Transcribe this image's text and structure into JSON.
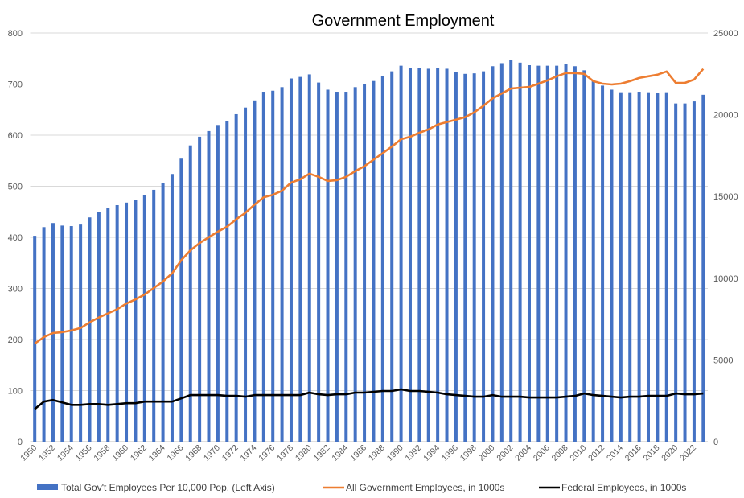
{
  "chart_data": {
    "type": "bar+line",
    "title": "Government Employment",
    "x": [
      1950,
      1951,
      1952,
      1953,
      1954,
      1955,
      1956,
      1957,
      1958,
      1959,
      1960,
      1961,
      1962,
      1963,
      1964,
      1965,
      1966,
      1967,
      1968,
      1969,
      1970,
      1971,
      1972,
      1973,
      1974,
      1975,
      1976,
      1977,
      1978,
      1979,
      1980,
      1981,
      1982,
      1983,
      1984,
      1985,
      1986,
      1987,
      1988,
      1989,
      1990,
      1991,
      1992,
      1993,
      1994,
      1995,
      1996,
      1997,
      1998,
      1999,
      2000,
      2001,
      2002,
      2003,
      2004,
      2005,
      2006,
      2007,
      2008,
      2009,
      2010,
      2011,
      2012,
      2013,
      2014,
      2015,
      2016,
      2017,
      2018,
      2019,
      2020,
      2021,
      2022,
      2023
    ],
    "x_tick_labels": [
      "1950",
      "1952",
      "1954",
      "1956",
      "1958",
      "1960",
      "1962",
      "1964",
      "1966",
      "1968",
      "1970",
      "1972",
      "1974",
      "1976",
      "1978",
      "1980",
      "1982",
      "1984",
      "1986",
      "1988",
      "1990",
      "1992",
      "1994",
      "1996",
      "1998",
      "2000",
      "2002",
      "2004",
      "2006",
      "2008",
      "2010",
      "2012",
      "2014",
      "2016",
      "2018",
      "2020",
      "2022"
    ],
    "left_axis": {
      "ylim": [
        0,
        800
      ],
      "ticks": [
        "0",
        "100",
        "200",
        "300",
        "400",
        "500",
        "600",
        "700",
        "800"
      ]
    },
    "right_axis": {
      "ylim": [
        0,
        25000
      ],
      "ticks": [
        "0",
        "5000",
        "10000",
        "15000",
        "20000",
        "25000"
      ]
    },
    "grid": true,
    "legend_position": "bottom",
    "series": [
      {
        "name": "Total Gov't Employees Per 10,000 Pop. (Left Axis)",
        "type": "bar",
        "axis": "left",
        "color": "#4472C4",
        "values": [
          403,
          420,
          428,
          423,
          422,
          425,
          439,
          450,
          457,
          463,
          468,
          474,
          482,
          493,
          506,
          524,
          554,
          580,
          597,
          608,
          620,
          627,
          641,
          654,
          668,
          685,
          687,
          694,
          711,
          714,
          719,
          703,
          689,
          685,
          685,
          694,
          700,
          706,
          716,
          725,
          736,
          732,
          732,
          730,
          732,
          730,
          723,
          720,
          721,
          725,
          735,
          741,
          747,
          742,
          737,
          736,
          736,
          736,
          739,
          735,
          727,
          706,
          697,
          689,
          684,
          684,
          685,
          684,
          682,
          684,
          662,
          662,
          666,
          679
        ]
      },
      {
        "name": "All Government Employees, in 1000s",
        "type": "line",
        "axis": "right",
        "color": "#ED7D31",
        "values": [
          6000,
          6400,
          6650,
          6700,
          6800,
          6950,
          7300,
          7600,
          7850,
          8100,
          8450,
          8700,
          9000,
          9400,
          9800,
          10300,
          11100,
          11700,
          12150,
          12500,
          12850,
          13150,
          13600,
          14000,
          14500,
          14950,
          15100,
          15350,
          15850,
          16050,
          16400,
          16200,
          15950,
          16000,
          16200,
          16550,
          16850,
          17250,
          17650,
          18050,
          18500,
          18650,
          18900,
          19100,
          19400,
          19550,
          19700,
          19850,
          20150,
          20550,
          21000,
          21300,
          21600,
          21650,
          21700,
          21900,
          22100,
          22350,
          22550,
          22550,
          22500,
          22050,
          21900,
          21850,
          21900,
          22050,
          22250,
          22350,
          22450,
          22650,
          21950,
          21950,
          22150,
          22800
        ]
      },
      {
        "name": "Federal Employees, in 1000s",
        "type": "line",
        "axis": "right",
        "color": "#000000",
        "values": [
          2000,
          2450,
          2550,
          2400,
          2250,
          2250,
          2300,
          2300,
          2250,
          2300,
          2350,
          2350,
          2450,
          2450,
          2450,
          2450,
          2650,
          2850,
          2850,
          2850,
          2850,
          2800,
          2800,
          2750,
          2850,
          2850,
          2850,
          2850,
          2850,
          2850,
          3000,
          2900,
          2850,
          2900,
          2900,
          3000,
          3000,
          3050,
          3100,
          3100,
          3200,
          3100,
          3100,
          3050,
          3000,
          2900,
          2850,
          2800,
          2750,
          2750,
          2850,
          2750,
          2750,
          2750,
          2700,
          2700,
          2700,
          2700,
          2750,
          2800,
          2950,
          2850,
          2800,
          2750,
          2700,
          2750,
          2750,
          2800,
          2800,
          2800,
          2950,
          2900,
          2900,
          2950
        ]
      }
    ]
  }
}
